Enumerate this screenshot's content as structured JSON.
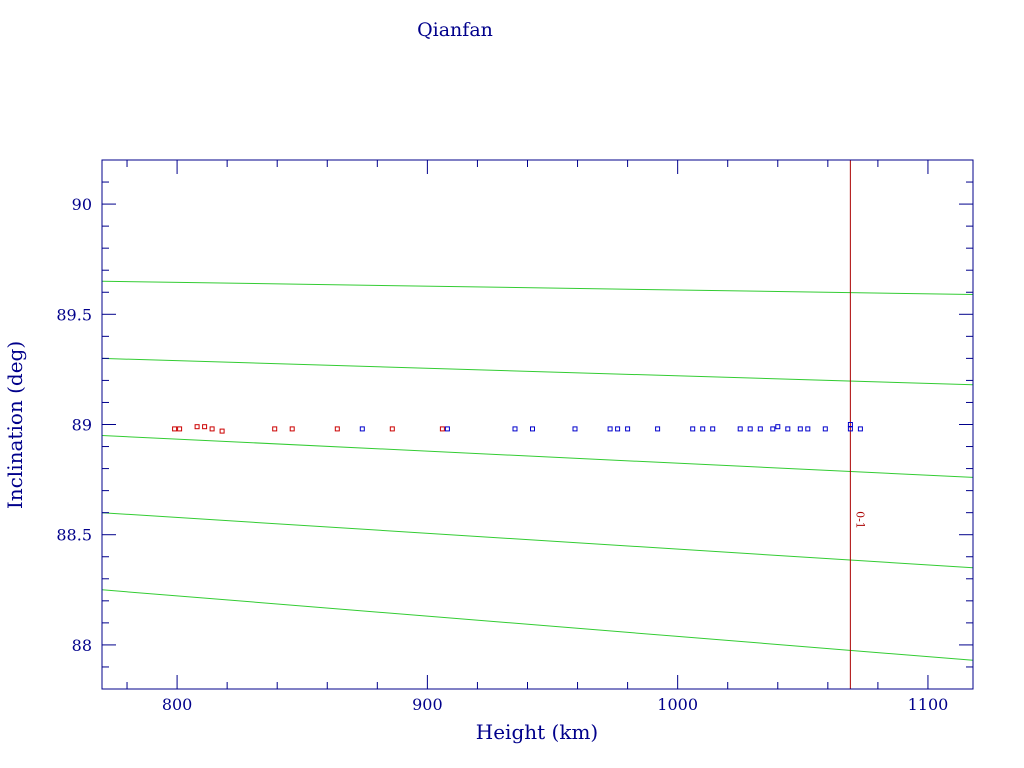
{
  "chart_data": {
    "type": "scatter",
    "title": "Qianfan",
    "xlabel": "Height (km)",
    "ylabel": "Inclination (deg)",
    "xlim": [
      770,
      1118
    ],
    "ylim": [
      87.8,
      90.2
    ],
    "x_ticks": [
      800,
      900,
      1000,
      1100
    ],
    "y_ticks": [
      88,
      88.5,
      89,
      89.5,
      90
    ],
    "x_tick_labels": [
      "800",
      "900",
      "1000",
      "1100"
    ],
    "y_tick_labels": [
      "88",
      "88.5",
      "89",
      "89.5",
      "90"
    ],
    "grid": false,
    "colors": {
      "axes": "#00008b",
      "text": "#00008b",
      "red_series": "#cc0000",
      "blue_series": "#0000cc",
      "curves": "#33cc33",
      "marker_line": "#aa0000"
    },
    "vertical_line": {
      "x": 1069,
      "label": "0-1"
    },
    "reference_curves": [
      {
        "points": [
          [
            770,
            89.65
          ],
          [
            1118,
            89.59
          ]
        ]
      },
      {
        "points": [
          [
            770,
            89.3
          ],
          [
            1118,
            89.18
          ]
        ]
      },
      {
        "points": [
          [
            770,
            88.95
          ],
          [
            1118,
            88.76
          ]
        ]
      },
      {
        "points": [
          [
            770,
            88.6
          ],
          [
            1118,
            88.35
          ]
        ]
      },
      {
        "points": [
          [
            770,
            88.25
          ],
          [
            1118,
            87.93
          ]
        ]
      }
    ],
    "series": [
      {
        "color": "#cc0000",
        "points": [
          [
            799,
            88.98
          ],
          [
            801,
            88.98
          ],
          [
            808,
            88.99
          ],
          [
            811,
            88.99
          ],
          [
            814,
            88.98
          ],
          [
            818,
            88.97
          ],
          [
            839,
            88.98
          ],
          [
            846,
            88.98
          ],
          [
            864,
            88.98
          ],
          [
            886,
            88.98
          ],
          [
            906,
            88.98
          ]
        ]
      },
      {
        "color": "#0000cc",
        "points": [
          [
            874,
            88.98
          ],
          [
            908,
            88.98
          ],
          [
            935,
            88.98
          ],
          [
            942,
            88.98
          ],
          [
            959,
            88.98
          ],
          [
            973,
            88.98
          ],
          [
            976,
            88.98
          ],
          [
            980,
            88.98
          ],
          [
            992,
            88.98
          ],
          [
            1006,
            88.98
          ],
          [
            1010,
            88.98
          ],
          [
            1014,
            88.98
          ],
          [
            1025,
            88.98
          ],
          [
            1029,
            88.98
          ],
          [
            1033,
            88.98
          ],
          [
            1038,
            88.98
          ],
          [
            1040,
            88.99
          ],
          [
            1044,
            88.98
          ],
          [
            1049,
            88.98
          ],
          [
            1052,
            88.98
          ],
          [
            1059,
            88.98
          ],
          [
            1069,
            88.98
          ],
          [
            1069,
            89.0
          ],
          [
            1073,
            88.98
          ]
        ]
      }
    ]
  }
}
